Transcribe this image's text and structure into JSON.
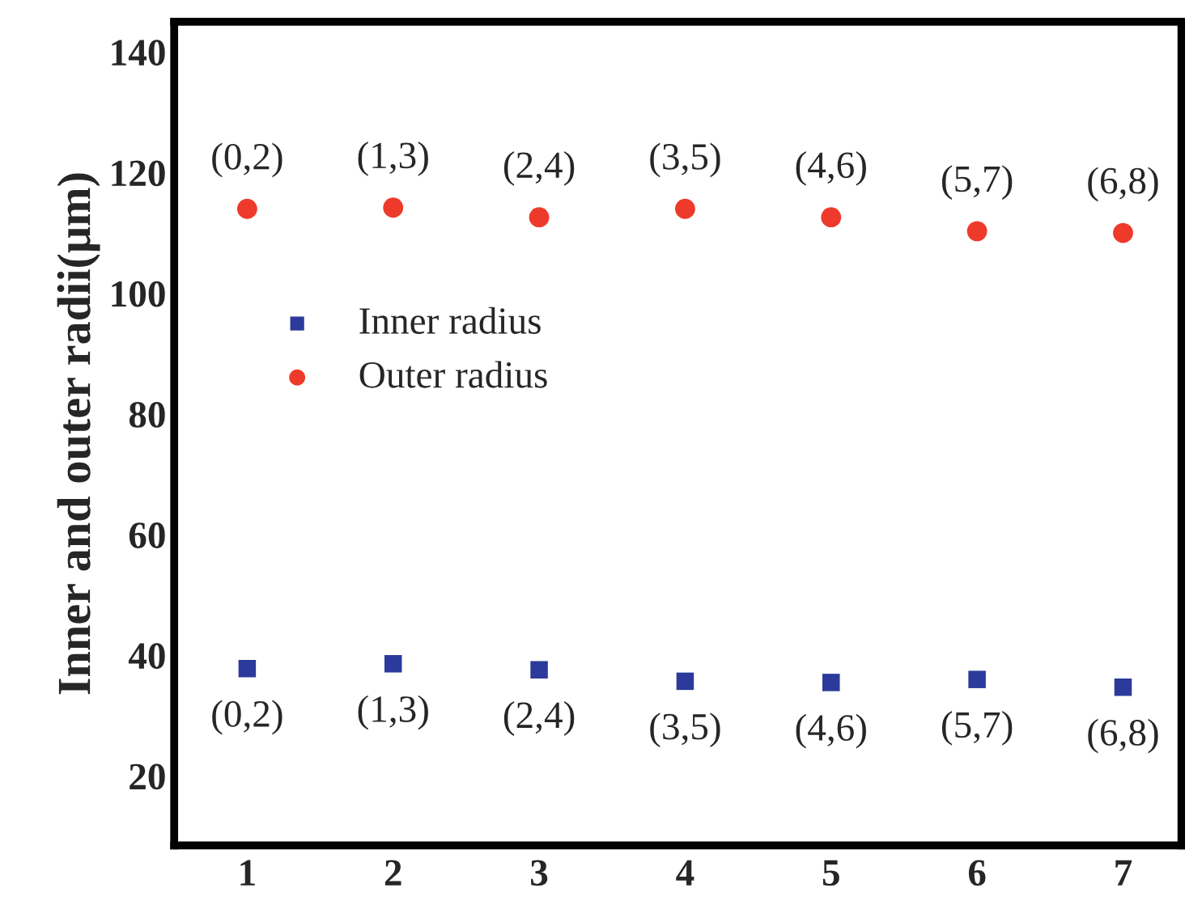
{
  "chart_data": {
    "type": "scatter",
    "ylabel": "Inner and outer radii(μm)",
    "x": [
      1,
      2,
      3,
      4,
      5,
      6,
      7
    ],
    "series": [
      {
        "name": "Inner radius",
        "color": "#2b3a9b",
        "marker": "square",
        "values": [
          37.8,
          38.6,
          37.6,
          35.7,
          35.5,
          36.0,
          34.7
        ]
      },
      {
        "name": "Outer radius",
        "color": "#ee3a2b",
        "marker": "circle",
        "values": [
          114.0,
          114.2,
          112.6,
          114.0,
          112.6,
          110.3,
          110.0
        ]
      }
    ],
    "xlim": [
      0.5,
      7.4
    ],
    "xticks": [
      1,
      2,
      3,
      4,
      5,
      6,
      7
    ],
    "ylim": [
      8.5,
      145
    ],
    "yticks": [
      20,
      40,
      60,
      80,
      100,
      120,
      140
    ],
    "grid": false,
    "legend": "center left",
    "annotations": [
      {
        "text": "(0,2)",
        "x": 1,
        "y": 114.0
      },
      {
        "text": "(1,3)",
        "x": 2,
        "y": 114.2
      },
      {
        "text": "(2,4)",
        "x": 3,
        "y": 112.6
      },
      {
        "text": "(3,5)",
        "x": 4,
        "y": 114.0
      },
      {
        "text": "(4,6)",
        "x": 5,
        "y": 112.6
      },
      {
        "text": "(5,7)",
        "x": 6,
        "y": 110.3
      },
      {
        "text": "(6,8)",
        "x": 7,
        "y": 110.0
      },
      {
        "text": "(0,2)",
        "x": 1,
        "y": 37.8
      },
      {
        "text": "(1,3)",
        "x": 2,
        "y": 38.6
      },
      {
        "text": "(2,4)",
        "x": 3,
        "y": 37.6
      },
      {
        "text": "(3,5)",
        "x": 4,
        "y": 35.7
      },
      {
        "text": "(4,6)",
        "x": 5,
        "y": 35.5
      },
      {
        "text": "(5,7)",
        "x": 6,
        "y": 36.0
      },
      {
        "text": "(6,8)",
        "x": 7,
        "y": 34.7
      }
    ]
  }
}
